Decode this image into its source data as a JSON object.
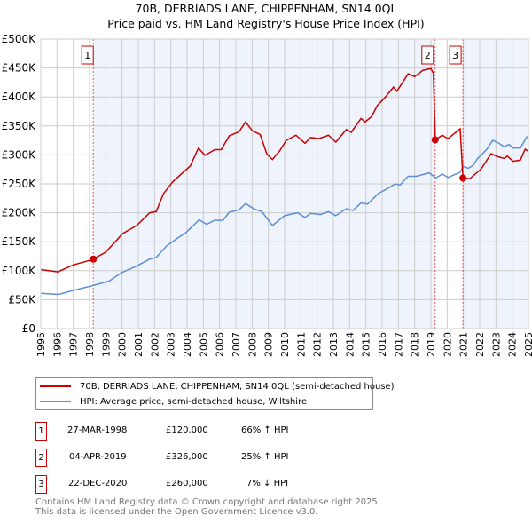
{
  "chart_data": {
    "type": "line",
    "title": "70B, DERRIADS LANE, CHIPPENHAM, SN14 0QL",
    "subtitle": "Price paid vs. HM Land Registry's House Price Index (HPI)",
    "xlim": [
      1995,
      2025
    ],
    "ylim": [
      0,
      500000
    ],
    "y_ticks": [
      {
        "v": 0,
        "label": "£0"
      },
      {
        "v": 50000,
        "label": "£50K"
      },
      {
        "v": 100000,
        "label": "£100K"
      },
      {
        "v": 150000,
        "label": "£150K"
      },
      {
        "v": 200000,
        "label": "£200K"
      },
      {
        "v": 250000,
        "label": "£250K"
      },
      {
        "v": 300000,
        "label": "£300K"
      },
      {
        "v": 350000,
        "label": "£350K"
      },
      {
        "v": 400000,
        "label": "£400K"
      },
      {
        "v": 450000,
        "label": "£450K"
      },
      {
        "v": 500000,
        "label": "£500K"
      }
    ],
    "x_ticks": [
      "1995",
      "1996",
      "1997",
      "1998",
      "1999",
      "2000",
      "2001",
      "2002",
      "2003",
      "2004",
      "2005",
      "2006",
      "2007",
      "2008",
      "2009",
      "2010",
      "2011",
      "2012",
      "2013",
      "2014",
      "2015",
      "2016",
      "2017",
      "2018",
      "2019",
      "2020",
      "2021",
      "2022",
      "2023",
      "2024",
      "2025"
    ],
    "grid": true,
    "series": [
      {
        "name": "70B, DERRIADS LANE, CHIPPENHAM, SN14 0QL (semi-detached house)",
        "color": "#cc0000",
        "points": [
          [
            1995,
            102
          ],
          [
            1996.05,
            98
          ],
          [
            1997,
            110
          ],
          [
            1998.15,
            119
          ],
          [
            1999,
            132
          ],
          [
            2000.03,
            164
          ],
          [
            2000.9,
            178
          ],
          [
            2001.7,
            200
          ],
          [
            2002.1,
            202
          ],
          [
            2002.55,
            233
          ],
          [
            2003.1,
            253
          ],
          [
            2003.8,
            271
          ],
          [
            2004.2,
            281
          ],
          [
            2004.7,
            312
          ],
          [
            2005.1,
            299
          ],
          [
            2005.7,
            309
          ],
          [
            2006.1,
            309
          ],
          [
            2006.6,
            333
          ],
          [
            2007.2,
            340
          ],
          [
            2007.6,
            357
          ],
          [
            2008,
            342
          ],
          [
            2008.5,
            335
          ],
          [
            2008.9,
            302
          ],
          [
            2009.25,
            292
          ],
          [
            2009.7,
            307
          ],
          [
            2010.1,
            325
          ],
          [
            2010.7,
            334
          ],
          [
            2011.25,
            320
          ],
          [
            2011.6,
            330
          ],
          [
            2012.1,
            328
          ],
          [
            2012.7,
            334
          ],
          [
            2013.15,
            322
          ],
          [
            2013.8,
            344
          ],
          [
            2014.1,
            339
          ],
          [
            2014.7,
            363
          ],
          [
            2014.95,
            357
          ],
          [
            2015.35,
            366
          ],
          [
            2015.7,
            385
          ],
          [
            2016.2,
            400
          ],
          [
            2016.7,
            417
          ],
          [
            2016.9,
            410
          ],
          [
            2017.1,
            418
          ],
          [
            2017.6,
            440
          ],
          [
            2018,
            435
          ],
          [
            2018.5,
            446
          ],
          [
            2019.0,
            449
          ],
          [
            2019.15,
            441
          ],
          [
            2019.27,
            326
          ],
          [
            2019.7,
            334
          ],
          [
            2020.05,
            328
          ],
          [
            2020.8,
            345
          ],
          [
            2020.97,
            260
          ],
          [
            2021.4,
            259
          ],
          [
            2022.1,
            276
          ],
          [
            2022.7,
            302
          ],
          [
            2023.1,
            297
          ],
          [
            2023.5,
            294
          ],
          [
            2023.7,
            298
          ],
          [
            2024.05,
            289
          ],
          [
            2024.5,
            291
          ],
          [
            2024.8,
            310
          ],
          [
            2025,
            306
          ]
        ]
      },
      {
        "name": "HPI: Average price, semi-detached house, Wiltshire",
        "color": "#5b8fd6",
        "points": [
          [
            1995,
            61
          ],
          [
            1996.1,
            59
          ],
          [
            1997,
            66
          ],
          [
            1998.15,
            74
          ],
          [
            1999.2,
            82
          ],
          [
            2000,
            97
          ],
          [
            2000.9,
            108
          ],
          [
            2001.7,
            120
          ],
          [
            2002.1,
            123
          ],
          [
            2002.75,
            143
          ],
          [
            2003.4,
            156
          ],
          [
            2003.9,
            165
          ],
          [
            2004.75,
            188
          ],
          [
            2005.2,
            180
          ],
          [
            2005.7,
            187
          ],
          [
            2006.2,
            187
          ],
          [
            2006.6,
            201
          ],
          [
            2007.2,
            205
          ],
          [
            2007.6,
            216
          ],
          [
            2008.1,
            207
          ],
          [
            2008.6,
            202
          ],
          [
            2009.25,
            178
          ],
          [
            2010,
            195
          ],
          [
            2010.8,
            200
          ],
          [
            2011.25,
            192
          ],
          [
            2011.6,
            199
          ],
          [
            2012.2,
            197
          ],
          [
            2012.7,
            202
          ],
          [
            2013.15,
            195
          ],
          [
            2013.8,
            207
          ],
          [
            2014.2,
            204
          ],
          [
            2014.7,
            217
          ],
          [
            2015.1,
            215
          ],
          [
            2015.8,
            234
          ],
          [
            2016.4,
            243
          ],
          [
            2016.8,
            250
          ],
          [
            2017.1,
            248
          ],
          [
            2017.6,
            263
          ],
          [
            2018.1,
            263
          ],
          [
            2018.9,
            269
          ],
          [
            2019.3,
            260
          ],
          [
            2019.7,
            267
          ],
          [
            2020.05,
            261
          ],
          [
            2020.8,
            270
          ],
          [
            2021,
            280
          ],
          [
            2021.3,
            277
          ],
          [
            2021.6,
            282
          ],
          [
            2021.85,
            293
          ],
          [
            2022.45,
            310
          ],
          [
            2022.8,
            325
          ],
          [
            2023.2,
            320
          ],
          [
            2023.5,
            314
          ],
          [
            2023.8,
            318
          ],
          [
            2024.05,
            312
          ],
          [
            2024.5,
            312
          ],
          [
            2024.9,
            331
          ],
          [
            2025,
            330
          ]
        ]
      }
    ],
    "sales": [
      {
        "n": "1",
        "x": 1998.23,
        "y": 120
      },
      {
        "n": "2",
        "x": 2019.26,
        "y": 326
      },
      {
        "n": "3",
        "x": 2020.97,
        "y": 260
      }
    ],
    "legend_placement": "bottom"
  },
  "transactions": [
    {
      "n": "1",
      "date": "27-MAR-1998",
      "price": "£120,000",
      "hpi": "66% ↑ HPI"
    },
    {
      "n": "2",
      "date": "04-APR-2019",
      "price": "£326,000",
      "hpi": "25% ↑ HPI"
    },
    {
      "n": "3",
      "date": "22-DEC-2020",
      "price": "£260,000",
      "hpi": "7% ↓ HPI"
    }
  ],
  "footer": {
    "line1": "Contains HM Land Registry data © Crown copyright and database right 2025.",
    "line2": "This data is licensed under the Open Government Licence v3.0."
  }
}
